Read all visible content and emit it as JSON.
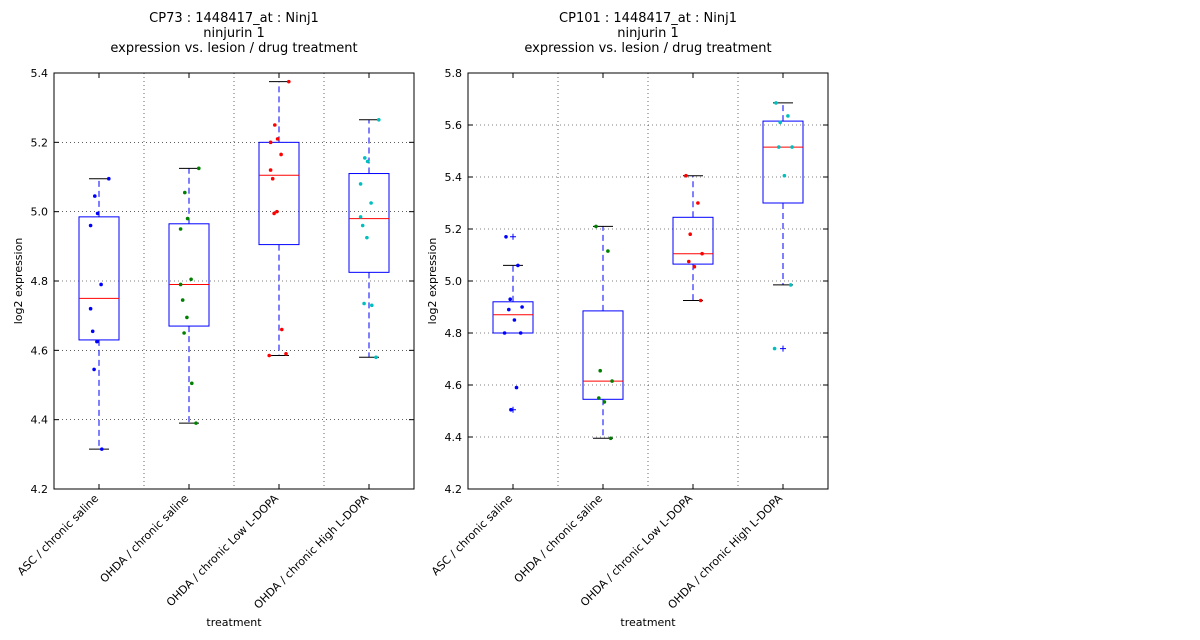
{
  "chart_data": [
    {
      "type": "box",
      "title": [
        "CP73 : 1448417_at : Ninj1",
        "ninjurin 1",
        "expression vs. lesion / drug treatment"
      ],
      "xlabel": "treatment",
      "ylabel": "log2 expression",
      "ylim": [
        4.2,
        5.4
      ],
      "yticks": [
        "4.2",
        "4.4",
        "4.6",
        "4.8",
        "5.0",
        "5.2",
        "5.4"
      ],
      "grid": true,
      "categories": [
        "ASC / chronic saline",
        "OHDA / chronic saline",
        "OHDA / chronic Low L-DOPA",
        "OHDA / chronic High L-DOPA"
      ],
      "colors": [
        "#0000ff",
        "#008000",
        "#ff0000",
        "#00bfbf"
      ],
      "boxes": [
        {
          "q1": 4.63,
          "median": 4.75,
          "q3": 4.985,
          "whisker_low": 4.315,
          "whisker_high": 5.095,
          "outliers": []
        },
        {
          "q1": 4.67,
          "median": 4.79,
          "q3": 4.965,
          "whisker_low": 4.39,
          "whisker_high": 5.125,
          "outliers": []
        },
        {
          "q1": 4.905,
          "median": 5.105,
          "q3": 5.2,
          "whisker_low": 4.585,
          "whisker_high": 5.375,
          "outliers": []
        },
        {
          "q1": 4.825,
          "median": 4.98,
          "q3": 5.11,
          "whisker_low": 4.58,
          "whisker_high": 5.265,
          "outliers": []
        }
      ],
      "points": [
        [
          5.095,
          5.045,
          4.995,
          4.96,
          4.79,
          4.72,
          4.655,
          4.625,
          4.545,
          4.315
        ],
        [
          5.125,
          5.055,
          4.98,
          4.95,
          4.805,
          4.79,
          4.745,
          4.695,
          4.65,
          4.505,
          4.39
        ],
        [
          5.375,
          5.25,
          5.21,
          5.2,
          5.165,
          5.12,
          5.095,
          5.0,
          4.995,
          4.66,
          4.59,
          4.585
        ],
        [
          5.265,
          5.155,
          5.145,
          5.08,
          5.025,
          4.985,
          4.96,
          4.925,
          4.735,
          4.73,
          4.58
        ]
      ]
    },
    {
      "type": "box",
      "title": [
        "CP101 : 1448417_at : Ninj1",
        "ninjurin 1",
        "expression vs. lesion / drug treatment"
      ],
      "xlabel": "treatment",
      "ylabel": "log2 expression",
      "ylim": [
        4.2,
        5.8
      ],
      "yticks": [
        "4.2",
        "4.4",
        "4.6",
        "4.8",
        "5.0",
        "5.2",
        "5.4",
        "5.6",
        "5.8"
      ],
      "grid": true,
      "categories": [
        "ASC / chronic saline",
        "OHDA / chronic saline",
        "OHDA / chronic Low L-DOPA",
        "OHDA / chronic High L-DOPA"
      ],
      "colors": [
        "#0000ff",
        "#008000",
        "#ff0000",
        "#00bfbf"
      ],
      "boxes": [
        {
          "q1": 4.8,
          "median": 4.87,
          "q3": 4.92,
          "whisker_low": 4.8,
          "whisker_high": 5.06,
          "outliers": [
            5.17,
            4.505
          ]
        },
        {
          "q1": 4.545,
          "median": 4.615,
          "q3": 4.885,
          "whisker_low": 4.395,
          "whisker_high": 5.21,
          "outliers": []
        },
        {
          "q1": 5.065,
          "median": 5.105,
          "q3": 5.245,
          "whisker_low": 4.925,
          "whisker_high": 5.405,
          "outliers": []
        },
        {
          "q1": 5.3,
          "median": 5.515,
          "q3": 5.615,
          "whisker_low": 4.985,
          "whisker_high": 5.685,
          "outliers": [
            4.74
          ]
        }
      ],
      "points": [
        [
          5.17,
          5.06,
          4.93,
          4.9,
          4.89,
          4.85,
          4.8,
          4.8,
          4.59,
          4.505
        ],
        [
          5.21,
          5.115,
          4.655,
          4.615,
          4.55,
          4.535,
          4.395
        ],
        [
          5.405,
          5.3,
          5.18,
          5.105,
          5.075,
          5.055,
          4.925
        ],
        [
          5.685,
          5.635,
          5.61,
          5.515,
          5.515,
          5.405,
          4.985,
          4.74
        ]
      ]
    }
  ]
}
